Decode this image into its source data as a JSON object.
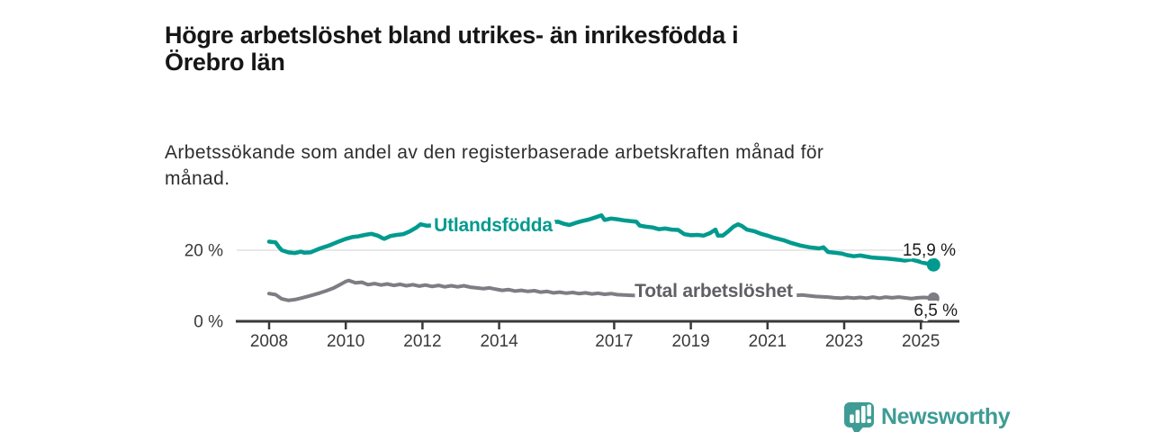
{
  "header": {
    "title": "Högre arbetslöshet bland utrikes- än inrikesfödda i\nÖrebro län",
    "subtitle": "Arbetssökande som andel av den registerbaserade arbetskraften månad för\nmånad."
  },
  "footer": {
    "brand": "Newsworthy",
    "logo_icon": "bar-chart-speech-bubble-icon",
    "logo_color": "#3E9C95"
  },
  "colors": {
    "axis": "#3a3a3a",
    "grid": "#d9d9d9",
    "end_label": "#1a1a1a",
    "accent_teal": "#009a8e",
    "line_gray": "#7d7d84"
  },
  "chart_data": {
    "type": "line",
    "title": "Högre arbetslöshet bland utrikes- än inrikesfödda i Örebro län",
    "subtitle": "Arbetssökande som andel av den registerbaserade arbetskraften månad för månad.",
    "xlabel": "",
    "ylabel": "",
    "unit": "%",
    "x_range": [
      2008,
      2026
    ],
    "ylim": [
      0,
      32
    ],
    "x_ticks": [
      "2008",
      "2010",
      "2012",
      "2014",
      "2017",
      "2019",
      "2021",
      "2023",
      "2025"
    ],
    "x_tick_values": [
      2008,
      2010,
      2012,
      2014,
      2017,
      2019,
      2021,
      2023,
      2025
    ],
    "y_ticks": [
      {
        "value": 0,
        "label": "0 %"
      },
      {
        "value": 20,
        "label": "20 %"
      }
    ],
    "gridlines_y": [
      20
    ],
    "legend_position": "inline-labels-on-lines",
    "series": [
      {
        "name": "Utlandsfödda",
        "color": "#009a8e",
        "label_color": "#009a8e",
        "end_label": "15,9 %",
        "end_value": 15.9,
        "points": [
          [
            2008.0,
            22.4
          ],
          [
            2008.17,
            22.2
          ],
          [
            2008.25,
            21.0
          ],
          [
            2008.33,
            20.0
          ],
          [
            2008.5,
            19.4
          ],
          [
            2008.67,
            19.2
          ],
          [
            2008.75,
            19.4
          ],
          [
            2008.83,
            19.6
          ],
          [
            2008.92,
            19.3
          ],
          [
            2009.08,
            19.4
          ],
          [
            2009.17,
            19.8
          ],
          [
            2009.33,
            20.5
          ],
          [
            2009.5,
            21.1
          ],
          [
            2009.58,
            21.4
          ],
          [
            2009.67,
            21.8
          ],
          [
            2009.83,
            22.5
          ],
          [
            2010.0,
            23.2
          ],
          [
            2010.17,
            23.7
          ],
          [
            2010.33,
            23.9
          ],
          [
            2010.5,
            24.3
          ],
          [
            2010.67,
            24.6
          ],
          [
            2010.83,
            24.1
          ],
          [
            2010.92,
            23.6
          ],
          [
            2011.0,
            23.2
          ],
          [
            2011.17,
            24.0
          ],
          [
            2011.33,
            24.3
          ],
          [
            2011.5,
            24.5
          ],
          [
            2011.67,
            25.3
          ],
          [
            2011.83,
            26.3
          ],
          [
            2011.95,
            27.3
          ],
          [
            2012.1,
            26.9
          ],
          [
            2012.4,
            27.0
          ],
          [
            2012.7,
            27.1
          ],
          [
            2013.0,
            27.2
          ],
          [
            2013.3,
            27.3
          ],
          [
            2013.6,
            27.4
          ],
          [
            2013.9,
            27.5
          ],
          [
            2014.2,
            27.6
          ],
          [
            2014.5,
            27.6
          ],
          [
            2014.8,
            27.7
          ],
          [
            2015.1,
            27.8
          ],
          [
            2015.4,
            27.9
          ],
          [
            2015.54,
            28.0
          ],
          [
            2015.67,
            27.5
          ],
          [
            2015.83,
            27.1
          ],
          [
            2016.0,
            27.7
          ],
          [
            2016.17,
            28.2
          ],
          [
            2016.33,
            28.6
          ],
          [
            2016.5,
            29.2
          ],
          [
            2016.67,
            29.8
          ],
          [
            2016.75,
            28.5
          ],
          [
            2016.92,
            28.9
          ],
          [
            2017.08,
            28.7
          ],
          [
            2017.25,
            28.4
          ],
          [
            2017.42,
            28.2
          ],
          [
            2017.58,
            28.0
          ],
          [
            2017.67,
            26.9
          ],
          [
            2017.83,
            26.6
          ],
          [
            2018.0,
            26.4
          ],
          [
            2018.17,
            25.9
          ],
          [
            2018.33,
            26.1
          ],
          [
            2018.5,
            25.8
          ],
          [
            2018.67,
            25.7
          ],
          [
            2018.83,
            24.5
          ],
          [
            2019.0,
            24.2
          ],
          [
            2019.17,
            24.3
          ],
          [
            2019.33,
            24.1
          ],
          [
            2019.5,
            24.8
          ],
          [
            2019.64,
            25.8
          ],
          [
            2019.71,
            24.1
          ],
          [
            2019.83,
            24.1
          ],
          [
            2019.95,
            25.1
          ],
          [
            2020.11,
            26.6
          ],
          [
            2020.23,
            27.3
          ],
          [
            2020.33,
            26.8
          ],
          [
            2020.46,
            25.8
          ],
          [
            2020.67,
            25.3
          ],
          [
            2020.83,
            24.6
          ],
          [
            2021.0,
            24.1
          ],
          [
            2021.17,
            23.5
          ],
          [
            2021.42,
            22.8
          ],
          [
            2021.63,
            22.0
          ],
          [
            2021.87,
            21.3
          ],
          [
            2022.1,
            20.8
          ],
          [
            2022.35,
            20.5
          ],
          [
            2022.46,
            20.8
          ],
          [
            2022.58,
            19.5
          ],
          [
            2022.75,
            19.3
          ],
          [
            2022.92,
            19.1
          ],
          [
            2023.08,
            18.6
          ],
          [
            2023.25,
            18.3
          ],
          [
            2023.42,
            18.5
          ],
          [
            2023.58,
            18.2
          ],
          [
            2023.75,
            17.9
          ],
          [
            2023.92,
            17.8
          ],
          [
            2024.08,
            17.7
          ],
          [
            2024.25,
            17.5
          ],
          [
            2024.42,
            17.3
          ],
          [
            2024.58,
            17.1
          ],
          [
            2024.75,
            17.4
          ],
          [
            2024.92,
            16.9
          ],
          [
            2025.08,
            16.4
          ],
          [
            2025.33,
            15.9
          ]
        ]
      },
      {
        "name": "Total arbetslöshet",
        "color": "#7d7d84",
        "label_color": "#5f5f64",
        "end_label": "6,5 %",
        "end_value": 6.5,
        "points": [
          [
            2008.0,
            7.8
          ],
          [
            2008.17,
            7.5
          ],
          [
            2008.33,
            6.3
          ],
          [
            2008.5,
            5.9
          ],
          [
            2008.67,
            6.1
          ],
          [
            2008.83,
            6.5
          ],
          [
            2009.0,
            7.0
          ],
          [
            2009.17,
            7.5
          ],
          [
            2009.33,
            8.0
          ],
          [
            2009.5,
            8.6
          ],
          [
            2009.67,
            9.3
          ],
          [
            2009.83,
            10.2
          ],
          [
            2010.0,
            11.2
          ],
          [
            2010.08,
            11.5
          ],
          [
            2010.25,
            10.8
          ],
          [
            2010.42,
            11.0
          ],
          [
            2010.58,
            10.3
          ],
          [
            2010.75,
            10.6
          ],
          [
            2010.92,
            10.2
          ],
          [
            2011.08,
            10.5
          ],
          [
            2011.25,
            10.1
          ],
          [
            2011.42,
            10.4
          ],
          [
            2011.58,
            10.0
          ],
          [
            2011.75,
            10.3
          ],
          [
            2011.92,
            9.9
          ],
          [
            2012.08,
            10.2
          ],
          [
            2012.25,
            9.8
          ],
          [
            2012.42,
            10.1
          ],
          [
            2012.58,
            9.7
          ],
          [
            2012.75,
            10.0
          ],
          [
            2012.92,
            9.7
          ],
          [
            2013.08,
            10.0
          ],
          [
            2013.25,
            9.6
          ],
          [
            2013.42,
            9.4
          ],
          [
            2013.58,
            9.2
          ],
          [
            2013.75,
            9.4
          ],
          [
            2013.92,
            9.0
          ],
          [
            2014.08,
            8.7
          ],
          [
            2014.25,
            8.9
          ],
          [
            2014.42,
            8.5
          ],
          [
            2014.58,
            8.7
          ],
          [
            2014.75,
            8.4
          ],
          [
            2014.92,
            8.6
          ],
          [
            2015.08,
            8.2
          ],
          [
            2015.25,
            8.4
          ],
          [
            2015.42,
            8.0
          ],
          [
            2015.58,
            8.2
          ],
          [
            2015.75,
            7.9
          ],
          [
            2015.92,
            8.1
          ],
          [
            2016.08,
            7.8
          ],
          [
            2016.25,
            8.0
          ],
          [
            2016.42,
            7.7
          ],
          [
            2016.58,
            7.9
          ],
          [
            2016.75,
            7.6
          ],
          [
            2016.92,
            7.8
          ],
          [
            2017.08,
            7.5
          ],
          [
            2017.25,
            7.4
          ],
          [
            2017.5,
            7.3
          ],
          [
            2018.0,
            7.2
          ],
          [
            2018.5,
            7.1
          ],
          [
            2019.0,
            7.0
          ],
          [
            2019.5,
            6.9
          ],
          [
            2020.0,
            7.1
          ],
          [
            2020.5,
            7.2
          ],
          [
            2021.0,
            7.1
          ],
          [
            2021.5,
            7.2
          ],
          [
            2021.92,
            7.4
          ],
          [
            2022.08,
            7.2
          ],
          [
            2022.25,
            7.0
          ],
          [
            2022.42,
            6.9
          ],
          [
            2022.58,
            6.8
          ],
          [
            2022.75,
            6.6
          ],
          [
            2022.92,
            6.5
          ],
          [
            2023.08,
            6.7
          ],
          [
            2023.25,
            6.5
          ],
          [
            2023.42,
            6.7
          ],
          [
            2023.58,
            6.5
          ],
          [
            2023.75,
            6.8
          ],
          [
            2023.92,
            6.5
          ],
          [
            2024.08,
            6.8
          ],
          [
            2024.25,
            6.6
          ],
          [
            2024.42,
            6.8
          ],
          [
            2024.58,
            6.6
          ],
          [
            2024.75,
            6.4
          ],
          [
            2024.92,
            6.6
          ],
          [
            2025.08,
            6.7
          ],
          [
            2025.33,
            6.5
          ]
        ]
      }
    ]
  }
}
